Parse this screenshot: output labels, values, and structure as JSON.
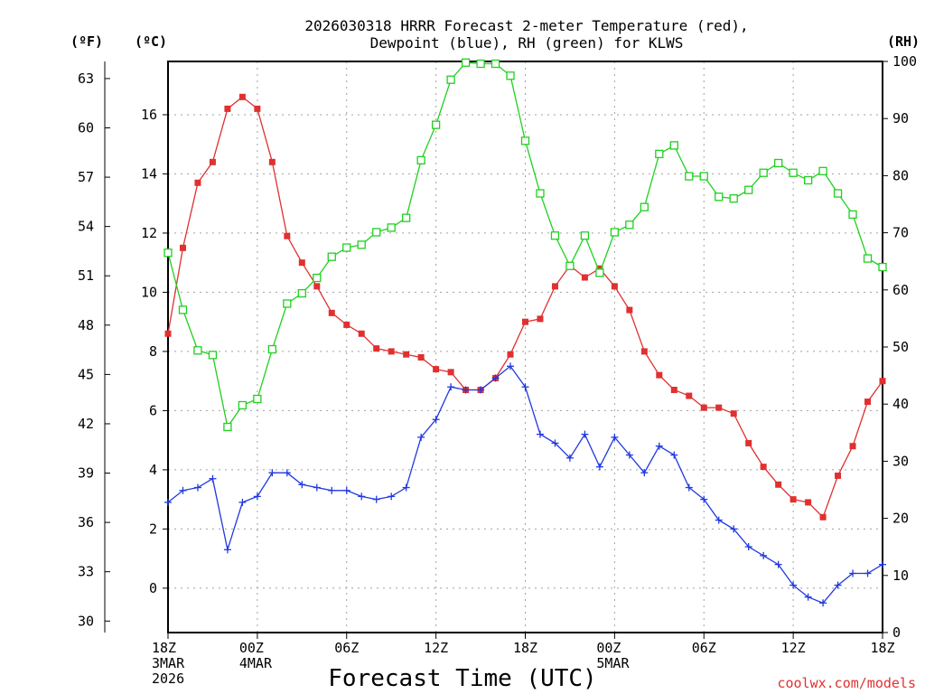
{
  "chart_data": {
    "type": "line",
    "title_line1": "2026030318 HRRR Forecast 2-meter Temperature (red),",
    "title_line2": "Dewpoint (blue), RH (green) for KLWS",
    "xlabel": "Forecast Time (UTC)",
    "credit": "coolwx.com/models",
    "units": {
      "f": "(ºF)",
      "c": "(ºC)",
      "rh": "(RH)"
    },
    "x_hours": [
      0,
      1,
      2,
      3,
      4,
      5,
      6,
      7,
      8,
      9,
      10,
      11,
      12,
      13,
      14,
      15,
      16,
      17,
      18,
      19,
      20,
      21,
      22,
      23,
      24,
      25,
      26,
      27,
      28,
      29,
      30,
      31,
      32,
      33,
      34,
      35,
      36,
      37,
      38,
      39,
      40,
      41,
      42,
      43,
      44,
      45,
      46,
      47,
      48
    ],
    "xlim": [
      0,
      48
    ],
    "ylim_c": [
      -1.5,
      17.8
    ],
    "ylim_rh": [
      0,
      100
    ],
    "x_ticks": [
      {
        "hour": 0,
        "lines": [
          "18Z",
          "3MAR",
          "2026"
        ]
      },
      {
        "hour": 6,
        "lines": [
          "00Z",
          "4MAR"
        ]
      },
      {
        "hour": 12,
        "lines": [
          "06Z"
        ]
      },
      {
        "hour": 18,
        "lines": [
          "12Z"
        ]
      },
      {
        "hour": 24,
        "lines": [
          "18Z"
        ]
      },
      {
        "hour": 30,
        "lines": [
          "00Z",
          "5MAR"
        ]
      },
      {
        "hour": 36,
        "lines": [
          "06Z"
        ]
      },
      {
        "hour": 42,
        "lines": [
          "12Z"
        ]
      },
      {
        "hour": 48,
        "lines": [
          "18Z"
        ]
      }
    ],
    "c_ticks": [
      0,
      2,
      4,
      6,
      8,
      10,
      12,
      14,
      16
    ],
    "f_ticks": [
      30,
      33,
      36,
      39,
      42,
      45,
      48,
      51,
      54,
      57,
      60,
      63
    ],
    "rh_ticks": [
      0,
      10,
      20,
      30,
      40,
      50,
      60,
      70,
      80,
      90,
      100
    ],
    "series": [
      {
        "name": "Temperature",
        "color": "#e03030",
        "marker": "square-filled",
        "axis": "c",
        "values": [
          8.6,
          11.5,
          13.7,
          14.4,
          16.2,
          16.6,
          16.2,
          14.4,
          11.9,
          11.0,
          10.2,
          9.3,
          8.9,
          8.6,
          8.1,
          8.0,
          7.9,
          7.8,
          7.4,
          7.3,
          6.7,
          6.7,
          7.1,
          7.9,
          9.0,
          9.1,
          10.2,
          10.9,
          10.5,
          10.8,
          10.2,
          9.4,
          8.0,
          7.2,
          6.7,
          6.5,
          6.1,
          6.1,
          5.9,
          4.9,
          4.1,
          3.5,
          3.0,
          2.9,
          2.4,
          3.8,
          4.8,
          6.3,
          7.0
        ]
      },
      {
        "name": "Dewpoint",
        "color": "#2038e0",
        "marker": "plus",
        "axis": "c",
        "values": [
          2.9,
          3.3,
          3.4,
          3.7,
          1.3,
          2.9,
          3.1,
          3.9,
          3.9,
          3.5,
          3.4,
          3.3,
          3.3,
          3.1,
          3.0,
          3.1,
          3.4,
          5.1,
          5.7,
          6.8,
          6.7,
          6.7,
          7.1,
          7.5,
          6.8,
          5.2,
          4.9,
          4.4,
          5.2,
          4.1,
          5.1,
          4.5,
          3.9,
          4.8,
          4.5,
          3.4,
          3.0,
          2.3,
          2.0,
          1.4,
          1.1,
          0.8,
          0.1,
          -0.3,
          -0.5,
          0.1,
          0.5,
          0.5,
          0.8
        ]
      },
      {
        "name": "RH",
        "color": "#20d020",
        "marker": "square-open",
        "axis": "rh",
        "values": [
          66.5,
          56.5,
          49.4,
          48.6,
          36.0,
          39.8,
          40.9,
          49.6,
          57.6,
          59.4,
          62.1,
          65.8,
          67.4,
          67.9,
          70.1,
          70.9,
          72.6,
          82.7,
          88.9,
          96.8,
          99.8,
          99.6,
          99.6,
          97.5,
          86.1,
          76.9,
          69.5,
          64.2,
          69.5,
          63.0,
          70.1,
          71.4,
          74.5,
          83.8,
          85.3,
          79.9,
          79.9,
          76.3,
          76.0,
          77.5,
          80.5,
          82.2,
          80.5,
          79.2,
          80.8,
          76.9,
          73.2,
          65.5,
          64.0
        ]
      }
    ]
  }
}
